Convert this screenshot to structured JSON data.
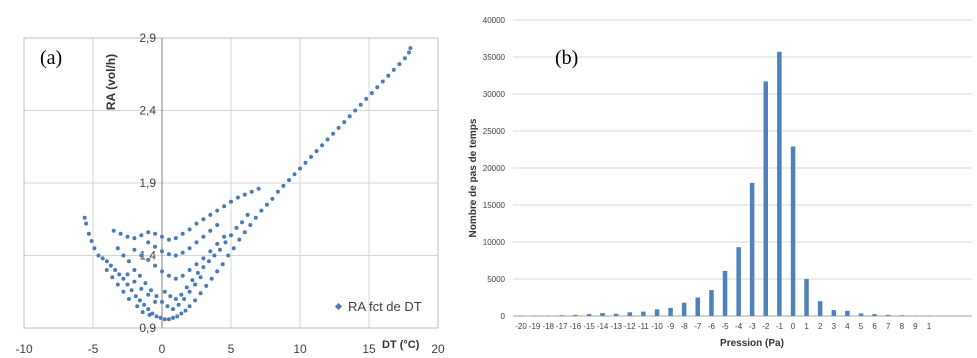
{
  "chart_data": [
    {
      "type": "scatter",
      "panel_label": "(a)",
      "title": "",
      "xlabel": "DT (°C)",
      "ylabel": "RA (vol/h)",
      "xlim": [
        -10,
        20
      ],
      "ylim": [
        0.9,
        2.9
      ],
      "x_ticks": [
        -10,
        -5,
        0,
        5,
        10,
        15,
        20
      ],
      "y_ticks": [
        "0,9",
        "1,4",
        "1,9",
        "2,4",
        "2,9"
      ],
      "y_tick_values": [
        0.9,
        1.4,
        1.9,
        2.4,
        2.9
      ],
      "grid": true,
      "legend_position": "bottom-right",
      "color": "#4a7ab5",
      "series": [
        {
          "name": "RA fct de DT",
          "points": [
            [
              -5.6,
              1.66
            ],
            [
              -5.5,
              1.62
            ],
            [
              -5.3,
              1.55
            ],
            [
              -5.1,
              1.5
            ],
            [
              -4.9,
              1.45
            ],
            [
              -4.6,
              1.4
            ],
            [
              -4.3,
              1.38
            ],
            [
              -4.0,
              1.36
            ],
            [
              -3.7,
              1.33
            ],
            [
              -3.4,
              1.3
            ],
            [
              -3.1,
              1.27
            ],
            [
              -2.8,
              1.24
            ],
            [
              -2.5,
              1.2
            ],
            [
              -2.2,
              1.16
            ],
            [
              -1.9,
              1.12
            ],
            [
              -1.6,
              1.09
            ],
            [
              -1.3,
              1.06
            ],
            [
              -1.0,
              1.03
            ],
            [
              -0.7,
              1.0
            ],
            [
              -0.4,
              0.98
            ],
            [
              -0.1,
              0.97
            ],
            [
              0.2,
              0.96
            ],
            [
              0.5,
              0.96
            ],
            [
              0.8,
              0.97
            ],
            [
              1.1,
              0.98
            ],
            [
              1.4,
              1.0
            ],
            [
              1.7,
              1.02
            ],
            [
              2.0,
              1.05
            ],
            [
              2.4,
              1.09
            ],
            [
              2.8,
              1.14
            ],
            [
              3.2,
              1.19
            ],
            [
              3.6,
              1.24
            ],
            [
              4.0,
              1.29
            ],
            [
              4.4,
              1.34
            ],
            [
              4.8,
              1.4
            ],
            [
              5.2,
              1.45
            ],
            [
              5.6,
              1.51
            ],
            [
              6.0,
              1.56
            ],
            [
              6.4,
              1.61
            ],
            [
              6.8,
              1.66
            ],
            [
              7.2,
              1.71
            ],
            [
              7.6,
              1.75
            ],
            [
              8.0,
              1.79
            ],
            [
              8.4,
              1.84
            ],
            [
              8.8,
              1.88
            ],
            [
              9.2,
              1.92
            ],
            [
              9.6,
              1.96
            ],
            [
              10.0,
              2.0
            ],
            [
              10.4,
              2.04
            ],
            [
              10.8,
              2.08
            ],
            [
              11.2,
              2.12
            ],
            [
              11.6,
              2.16
            ],
            [
              12.0,
              2.2
            ],
            [
              12.4,
              2.24
            ],
            [
              12.8,
              2.28
            ],
            [
              13.2,
              2.32
            ],
            [
              13.6,
              2.36
            ],
            [
              14.0,
              2.4
            ],
            [
              14.4,
              2.44
            ],
            [
              14.8,
              2.48
            ],
            [
              15.2,
              2.52
            ],
            [
              15.6,
              2.56
            ],
            [
              16.0,
              2.6
            ],
            [
              16.4,
              2.64
            ],
            [
              16.8,
              2.68
            ],
            [
              17.2,
              2.72
            ],
            [
              17.6,
              2.76
            ],
            [
              17.9,
              2.8
            ],
            [
              18.0,
              2.83
            ],
            [
              -3.5,
              1.57
            ],
            [
              -3.0,
              1.55
            ],
            [
              -2.5,
              1.53
            ],
            [
              -2.0,
              1.52
            ],
            [
              -1.5,
              1.54
            ],
            [
              -1.0,
              1.56
            ],
            [
              -0.5,
              1.55
            ],
            [
              0.0,
              1.53
            ],
            [
              0.5,
              1.51
            ],
            [
              1.0,
              1.52
            ],
            [
              1.5,
              1.55
            ],
            [
              2.0,
              1.58
            ],
            [
              2.5,
              1.62
            ],
            [
              3.0,
              1.65
            ],
            [
              3.5,
              1.68
            ],
            [
              4.0,
              1.71
            ],
            [
              4.5,
              1.74
            ],
            [
              5.0,
              1.77
            ],
            [
              5.5,
              1.8
            ],
            [
              6.0,
              1.82
            ],
            [
              6.5,
              1.84
            ],
            [
              7.0,
              1.86
            ],
            [
              -3.2,
              1.45
            ],
            [
              -2.8,
              1.4
            ],
            [
              -2.4,
              1.36
            ],
            [
              -2.0,
              1.3
            ],
            [
              -1.6,
              1.26
            ],
            [
              -1.2,
              1.21
            ],
            [
              -0.8,
              1.16
            ],
            [
              -0.4,
              1.12
            ],
            [
              0.0,
              1.08
            ],
            [
              0.4,
              1.05
            ],
            [
              0.8,
              1.03
            ],
            [
              1.2,
              1.06
            ],
            [
              1.6,
              1.1
            ],
            [
              2.0,
              1.15
            ],
            [
              2.4,
              1.2
            ],
            [
              2.8,
              1.25
            ],
            [
              -2.0,
              1.44
            ],
            [
              -1.5,
              1.4
            ],
            [
              -1.0,
              1.37
            ],
            [
              -0.5,
              1.33
            ],
            [
              0.0,
              1.29
            ],
            [
              0.5,
              1.26
            ],
            [
              1.0,
              1.24
            ],
            [
              1.5,
              1.26
            ],
            [
              2.0,
              1.3
            ],
            [
              2.5,
              1.34
            ],
            [
              3.0,
              1.38
            ],
            [
              3.5,
              1.43
            ],
            [
              4.0,
              1.48
            ],
            [
              4.5,
              1.53
            ],
            [
              -1.0,
              1.49
            ],
            [
              -0.5,
              1.46
            ],
            [
              0.0,
              1.43
            ],
            [
              0.5,
              1.41
            ],
            [
              1.0,
              1.4
            ],
            [
              1.5,
              1.42
            ],
            [
              2.0,
              1.45
            ],
            [
              2.5,
              1.49
            ],
            [
              3.0,
              1.53
            ],
            [
              3.5,
              1.57
            ],
            [
              4.0,
              1.61
            ],
            [
              -2.5,
              1.27
            ],
            [
              -2.0,
              1.22
            ],
            [
              -1.5,
              1.17
            ],
            [
              -1.0,
              1.13
            ],
            [
              -0.5,
              1.08
            ],
            [
              0.2,
              1.15
            ],
            [
              0.6,
              1.12
            ],
            [
              1.0,
              1.1
            ],
            [
              1.4,
              1.13
            ],
            [
              1.8,
              1.18
            ],
            [
              2.2,
              1.23
            ],
            [
              2.6,
              1.28
            ],
            [
              3.0,
              1.32
            ],
            [
              3.4,
              1.36
            ],
            [
              3.8,
              1.4
            ],
            [
              4.2,
              1.44
            ],
            [
              4.6,
              1.49
            ],
            [
              5.0,
              1.54
            ],
            [
              5.4,
              1.59
            ],
            [
              5.8,
              1.63
            ],
            [
              6.2,
              1.68
            ],
            [
              -4.0,
              1.3
            ],
            [
              -3.6,
              1.25
            ],
            [
              -3.2,
              1.2
            ],
            [
              -2.8,
              1.15
            ],
            [
              -2.4,
              1.1
            ],
            [
              -1.8,
              1.05
            ],
            [
              -1.4,
              1.01
            ],
            [
              -0.9,
              0.99
            ]
          ]
        }
      ]
    },
    {
      "type": "bar",
      "panel_label": "(b)",
      "title": "",
      "xlabel": "Pression (Pa)",
      "ylabel": "Nombre de pas de temps",
      "ylim": [
        0,
        40000
      ],
      "y_ticks": [
        0,
        5000,
        10000,
        15000,
        20000,
        25000,
        30000,
        35000,
        40000
      ],
      "grid": true,
      "color": "#4f81bd",
      "categories": [
        "-20",
        "-19",
        "-18",
        "-17",
        "-16",
        "-15",
        "-14",
        "-13",
        "-12",
        "-11",
        "-10",
        "-9",
        "-8",
        "-7",
        "-6",
        "-5",
        "-4",
        "-3",
        "-2",
        "-1",
        "0",
        "1",
        "2",
        "3",
        "4",
        "5",
        "6",
        "7",
        "8",
        "9",
        "1"
      ],
      "values": [
        50,
        50,
        50,
        100,
        150,
        250,
        400,
        300,
        500,
        600,
        900,
        1100,
        1800,
        2500,
        3500,
        6100,
        9300,
        18000,
        31700,
        35700,
        22900,
        5000,
        2000,
        800,
        700,
        350,
        250,
        150,
        100,
        50,
        50
      ]
    }
  ]
}
